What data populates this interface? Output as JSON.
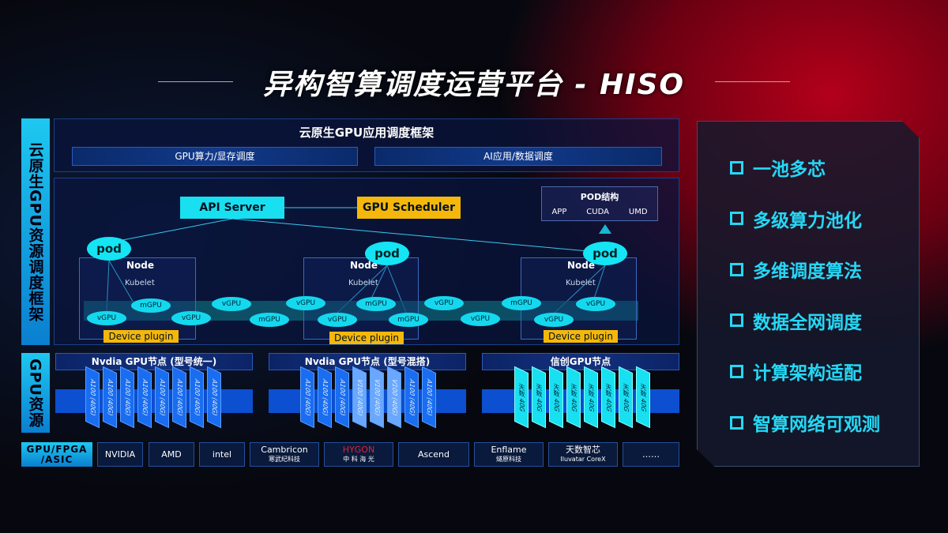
{
  "title": "异构智算调度运营平台 - HISO",
  "left_labels": {
    "framework": "云原生GPU资源调度框架",
    "resource": "GPU资源"
  },
  "top": {
    "title": "云原生GPU应用调度框架",
    "box1": "GPU算力/显存调度",
    "box2": "AI应用/数据调度"
  },
  "api_server": "API Server",
  "gpu_scheduler": "GPU Scheduler",
  "pod_struct": {
    "title": "POD结构",
    "items": [
      "APP",
      "CUDA",
      "UMD"
    ]
  },
  "pod": "pod",
  "node": "Node",
  "kubelet": "Kubelet",
  "device_plugin": "Device plugin",
  "vgpus": [
    "vGPU",
    "mGPU",
    "vGPU",
    "vGPU",
    "mGPU",
    "vGPU",
    "mGPU",
    "vGPU",
    "mGPU",
    "vGPU",
    "vGPU",
    "mGPU",
    "vGPU",
    "vGPU"
  ],
  "gpu_nodes": [
    {
      "title": "Nvdia GPU节点 (型号统一)",
      "cards": [
        "A100 (40G)",
        "A100 (40G)",
        "A100 (40G)",
        "A100 (40G)",
        "A100 (40G)",
        "A100 (40G)",
        "A100 (40G)",
        "A100 (40G)"
      ]
    },
    {
      "title": "Nvdia GPU节点 (型号混搭)",
      "cards": [
        "A100 (40G)",
        "A100 (40G)",
        "A100 (40G)",
        "V100 (40G)",
        "V100 (40G)",
        "V100 (40G)",
        "A100 (40G)",
        "A100 (40G)"
      ]
    },
    {
      "title": "信创GPU节点",
      "cards": [
        "天数 40G",
        "天数 40G",
        "天数 40G",
        "天数 40G",
        "天数 40G",
        "天数 40G",
        "天数 40G",
        "天数 40G"
      ]
    }
  ],
  "chip_label": "GPU/FPGA /ASIC",
  "vendors": [
    [
      "NVIDIA",
      ""
    ],
    [
      "AMD",
      ""
    ],
    [
      "intel",
      ""
    ],
    [
      "Cambricon",
      "寒武纪科技"
    ],
    [
      "HYGON",
      "中 科 海 光"
    ],
    [
      "Ascend",
      ""
    ],
    [
      "Enflame",
      "燧原科技"
    ],
    [
      "天数智芯",
      "Iluvatar CoreX"
    ],
    [
      "……",
      ""
    ]
  ],
  "features": [
    "一池多芯",
    "多级算力池化",
    "多维调度算法",
    "数据全网调度",
    "计算架构适配",
    "智算网络可观测"
  ],
  "colors": {
    "cyan": "#19e0f0",
    "yellow": "#f5b80a",
    "blue": "#0c4fd0",
    "red": "#b3001a"
  }
}
